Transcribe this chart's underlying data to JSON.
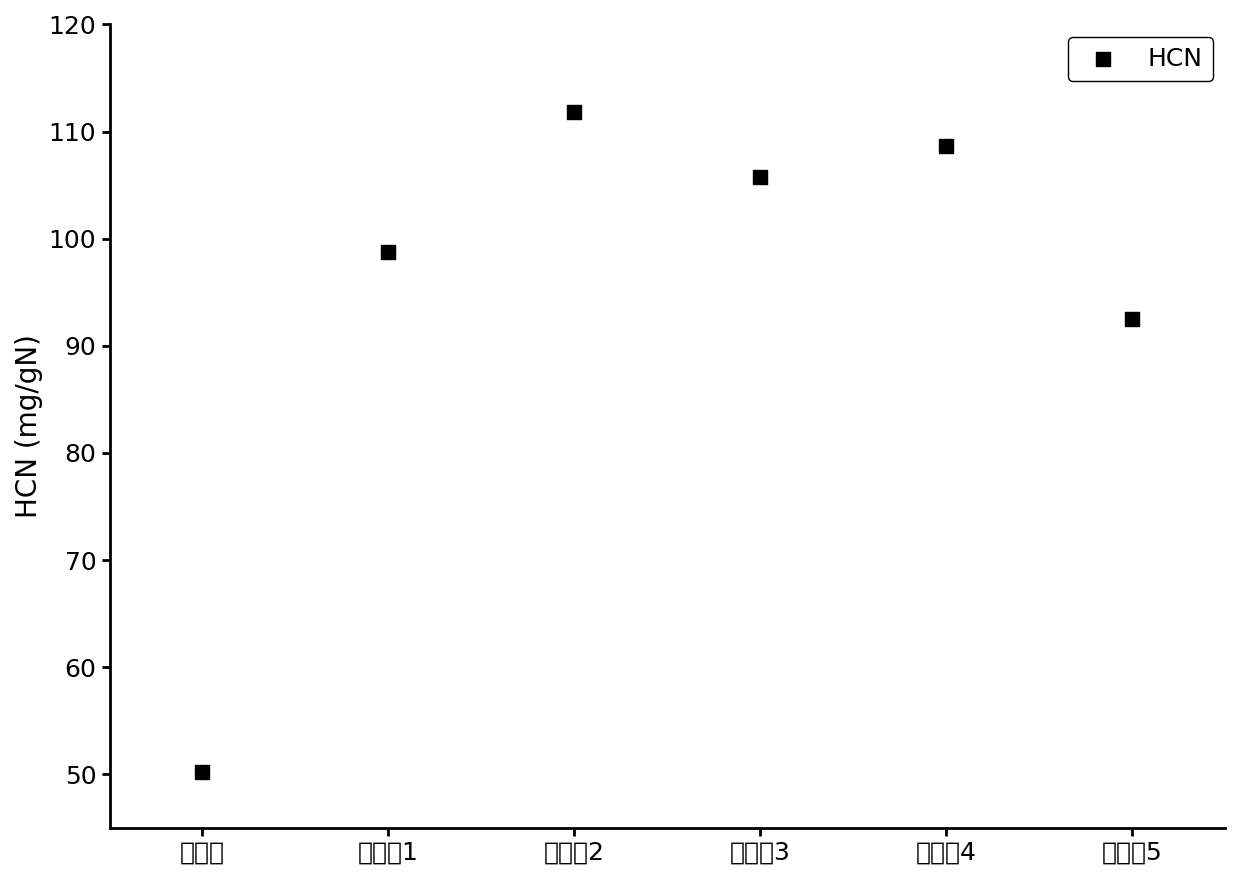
{
  "categories": [
    "空白组",
    "实施例1",
    "实施例2",
    "实施例3",
    "实施例4",
    "实施例5"
  ],
  "values": [
    50.2,
    98.8,
    111.8,
    105.8,
    108.7,
    92.5
  ],
  "ylabel": "HCN (mg/gN)",
  "ylim": [
    45,
    120
  ],
  "yticks": [
    50,
    60,
    70,
    80,
    90,
    100,
    110,
    120
  ],
  "marker": "s",
  "marker_size": 100,
  "marker_color": "#000000",
  "legend_label": "HCN",
  "background_color": "#ffffff",
  "spine_color": "#000000",
  "tick_fontsize": 18,
  "label_fontsize": 20,
  "legend_fontsize": 18
}
